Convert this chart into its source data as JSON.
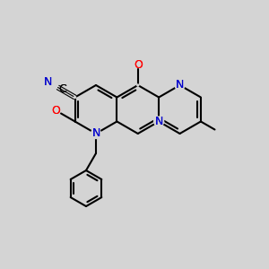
{
  "bg": "#d4d4d4",
  "bc": "#000000",
  "nc": "#0000cc",
  "oc": "#ff0000",
  "lw": 1.5,
  "fs": 9
}
